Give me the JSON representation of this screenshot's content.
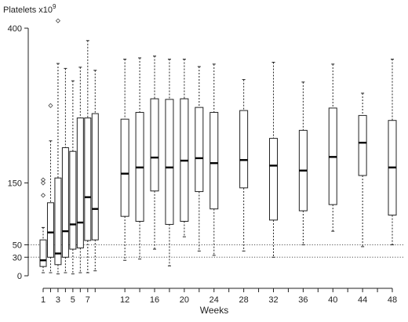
{
  "chart_data": {
    "type": "boxplot",
    "ylabel": "Platelets x10",
    "ylabel_superscript": "9",
    "xlabel": "Weeks",
    "ylim": [
      0,
      410
    ],
    "xlim": [
      0,
      49.5
    ],
    "y_ticks": [
      0,
      30,
      50,
      150,
      400
    ],
    "x_ticks": [
      1,
      3,
      5,
      7,
      12,
      16,
      20,
      24,
      28,
      32,
      36,
      40,
      44,
      48
    ],
    "x_minor_ticks": [
      2,
      4,
      6,
      8,
      14,
      18,
      22,
      26,
      30,
      34,
      38,
      42,
      46
    ],
    "reference_lines": [
      30,
      50
    ],
    "boxes": [
      {
        "week": 1,
        "lower": 5,
        "q1": 15,
        "median": 25,
        "q3": 58,
        "upper": 78,
        "outliers": [
          155,
          150,
          130
        ]
      },
      {
        "week": 2,
        "lower": 5,
        "q1": 30,
        "median": 70,
        "q3": 118,
        "upper": 218,
        "outliers": [
          275
        ]
      },
      {
        "week": 3,
        "lower": 3,
        "q1": 18,
        "median": 36,
        "q3": 158,
        "upper": 343,
        "outliers": [
          412
        ]
      },
      {
        "week": 4,
        "lower": 5,
        "q1": 30,
        "median": 72,
        "q3": 207,
        "upper": 335,
        "outliers": []
      },
      {
        "week": 5,
        "lower": 3,
        "q1": 43,
        "median": 83,
        "q3": 201,
        "upper": 315,
        "outliers": []
      },
      {
        "week": 6,
        "lower": 5,
        "q1": 45,
        "median": 86,
        "q3": 255,
        "upper": 337,
        "outliers": []
      },
      {
        "week": 7,
        "lower": 5,
        "q1": 57,
        "median": 127,
        "q3": 255,
        "upper": 380,
        "outliers": []
      },
      {
        "week": 8,
        "lower": 8,
        "q1": 58,
        "median": 108,
        "q3": 262,
        "upper": 332,
        "outliers": []
      },
      {
        "week": 12,
        "lower": 25,
        "q1": 96,
        "median": 165,
        "q3": 253,
        "upper": 350,
        "outliers": []
      },
      {
        "week": 14,
        "lower": 27,
        "q1": 88,
        "median": 175,
        "q3": 264,
        "upper": 352,
        "outliers": []
      },
      {
        "week": 16,
        "lower": 43,
        "q1": 137,
        "median": 191,
        "q3": 286,
        "upper": 355,
        "outliers": []
      },
      {
        "week": 18,
        "lower": 16,
        "q1": 83,
        "median": 175,
        "q3": 285,
        "upper": 350,
        "outliers": []
      },
      {
        "week": 20,
        "lower": 63,
        "q1": 88,
        "median": 186,
        "q3": 286,
        "upper": 350,
        "outliers": []
      },
      {
        "week": 22,
        "lower": 40,
        "q1": 136,
        "median": 190,
        "q3": 272,
        "upper": 338,
        "outliers": []
      },
      {
        "week": 24,
        "lower": 33,
        "q1": 108,
        "median": 182,
        "q3": 264,
        "upper": 342,
        "outliers": []
      },
      {
        "week": 28,
        "lower": 40,
        "q1": 142,
        "median": 187,
        "q3": 267,
        "upper": 317,
        "outliers": []
      },
      {
        "week": 32,
        "lower": 30,
        "q1": 90,
        "median": 178,
        "q3": 222,
        "upper": 345,
        "outliers": []
      },
      {
        "week": 36,
        "lower": 50,
        "q1": 105,
        "median": 170,
        "q3": 235,
        "upper": 313,
        "outliers": []
      },
      {
        "week": 40,
        "lower": 72,
        "q1": 115,
        "median": 192,
        "q3": 271,
        "upper": 342,
        "outliers": []
      },
      {
        "week": 44,
        "lower": 47,
        "q1": 162,
        "median": 215,
        "q3": 259,
        "upper": 295,
        "outliers": []
      },
      {
        "week": 48,
        "lower": 50,
        "q1": 98,
        "median": 175,
        "q3": 251,
        "upper": 350,
        "outliers": []
      }
    ]
  }
}
